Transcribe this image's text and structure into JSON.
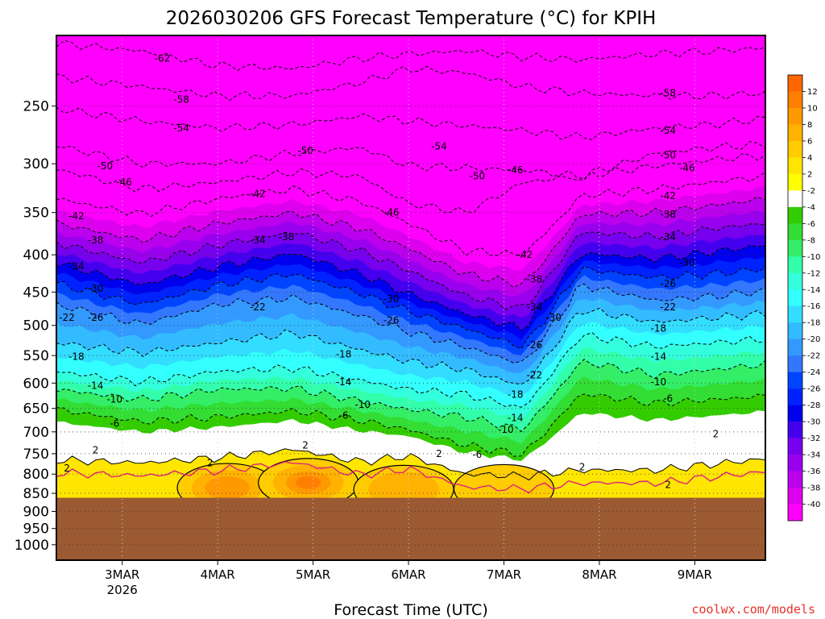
{
  "chart_data": {
    "type": "heatmap",
    "title": "2026030206 GFS Forecast Temperature (°C) for KPIH",
    "xlabel": "Forecast Time (UTC)",
    "ylabel": "",
    "credit": "coolwx.com/models",
    "x_ticks": [
      {
        "label": "3MAR",
        "sub": "2026",
        "day": 3
      },
      {
        "label": "4MAR",
        "sub": "",
        "day": 4
      },
      {
        "label": "5MAR",
        "sub": "",
        "day": 5
      },
      {
        "label": "6MAR",
        "sub": "",
        "day": 6
      },
      {
        "label": "7MAR",
        "sub": "",
        "day": 7
      },
      {
        "label": "8MAR",
        "sub": "",
        "day": 8
      },
      {
        "label": "9MAR",
        "sub": "",
        "day": 9
      }
    ],
    "xlim_days": [
      2.31,
      9.74
    ],
    "y_axis": {
      "quantity": "pressure (hPa)",
      "scale": "log",
      "reversed": true,
      "range": [
        200,
        1050
      ],
      "ticks": [
        250,
        300,
        350,
        400,
        450,
        500,
        550,
        600,
        650,
        700,
        750,
        800,
        850,
        900,
        950,
        1000
      ]
    },
    "gridlines": true,
    "ground_pressure_hPa": 862,
    "colorbar": {
      "placement": "right",
      "levels": [
        12,
        10,
        8,
        6,
        4,
        2,
        -2,
        -4,
        -6,
        -8,
        -10,
        -12,
        -14,
        -16,
        -18,
        -20,
        -22,
        -24,
        -26,
        -28,
        -30,
        -32,
        -34,
        -36,
        -38,
        -40
      ],
      "colors": [
        "#ff6600",
        "#ff8000",
        "#ff9900",
        "#ffb300",
        "#ffcc00",
        "#ffe600",
        "#ffff00",
        "#ffffff",
        "#33cc00",
        "#33dd33",
        "#33ee66",
        "#33ffaa",
        "#33ffdd",
        "#33ffff",
        "#33ddff",
        "#33bbff",
        "#3399ff",
        "#3377ff",
        "#0044ff",
        "#0022ff",
        "#0000ee",
        "#4400ee",
        "#7700ee",
        "#9900ee",
        "#bb00ee",
        "#dd00ee",
        "#ff00ff"
      ]
    },
    "isotherm_profiles": [
      {
        "t": -62,
        "x": [
          2.31,
          3.2,
          4.0,
          4.8,
          5.5,
          6.0,
          6.6,
          7.2,
          7.8,
          8.6,
          9.2,
          9.74
        ],
        "p": [
          205,
          210,
          220,
          222,
          215,
          212,
          210,
          214,
          216,
          212,
          210,
          208
        ]
      },
      {
        "t": -58,
        "x": [
          2.31,
          3.2,
          4.0,
          4.8,
          5.5,
          6.0,
          6.6,
          7.2,
          7.8,
          8.6,
          9.2,
          9.74
        ],
        "p": [
          228,
          235,
          242,
          242,
          232,
          222,
          225,
          235,
          240,
          242,
          242,
          240
        ]
      },
      {
        "t": -54,
        "x": [
          2.31,
          3.2,
          4.0,
          4.8,
          5.5,
          6.0,
          6.6,
          7.2,
          7.8,
          8.6,
          9.2,
          9.74
        ],
        "p": [
          252,
          262,
          268,
          265,
          258,
          262,
          266,
          270,
          276,
          268,
          265,
          260
        ]
      },
      {
        "t": -50,
        "x": [
          2.31,
          3.2,
          4.0,
          4.8,
          5.5,
          6.0,
          6.6,
          7.2,
          7.8,
          8.6,
          9.2,
          9.74
        ],
        "p": [
          283,
          300,
          300,
          290,
          285,
          302,
          304,
          306,
          312,
          290,
          285,
          282
        ]
      },
      {
        "t": -46,
        "x": [
          2.31,
          3.2,
          4.0,
          4.8,
          5.5,
          6.0,
          6.6,
          7.2,
          7.8,
          8.6,
          9.2,
          9.74
        ],
        "p": [
          305,
          325,
          318,
          308,
          312,
          340,
          350,
          318,
          312,
          302,
          296,
          292
        ]
      },
      {
        "t": -42,
        "x": [
          2.31,
          3.2,
          4.0,
          4.8,
          5.5,
          6.0,
          6.6,
          7.2,
          7.8,
          8.6,
          9.2,
          9.74
        ],
        "p": [
          335,
          352,
          335,
          325,
          338,
          362,
          395,
          400,
          332,
          325,
          318,
          312
        ]
      },
      {
        "t": -38,
        "x": [
          2.31,
          3.2,
          4.0,
          4.8,
          5.5,
          6.0,
          6.6,
          7.2,
          7.8,
          8.6,
          9.2,
          9.74
        ],
        "p": [
          362,
          382,
          362,
          350,
          368,
          392,
          425,
          440,
          352,
          350,
          342,
          335
        ]
      },
      {
        "t": -34,
        "x": [
          2.31,
          3.2,
          4.0,
          4.8,
          5.5,
          6.0,
          6.6,
          7.2,
          7.8,
          8.6,
          9.2,
          9.74
        ],
        "p": [
          385,
          410,
          388,
          372,
          395,
          420,
          455,
          475,
          372,
          378,
          368,
          362
        ]
      },
      {
        "t": -30,
        "x": [
          2.31,
          3.2,
          4.0,
          4.8,
          5.5,
          6.0,
          6.6,
          7.2,
          7.8,
          8.6,
          9.2,
          9.74
        ],
        "p": [
          410,
          440,
          415,
          398,
          425,
          452,
          482,
          505,
          398,
          405,
          396,
          388
        ]
      },
      {
        "t": -26,
        "x": [
          2.31,
          3.2,
          4.0,
          4.8,
          5.5,
          6.0,
          6.6,
          7.2,
          7.8,
          8.6,
          9.2,
          9.74
        ],
        "p": [
          438,
          468,
          440,
          425,
          452,
          478,
          505,
          535,
          418,
          430,
          425,
          418
        ]
      },
      {
        "t": -22,
        "x": [
          2.31,
          3.2,
          4.0,
          4.8,
          5.5,
          6.0,
          6.6,
          7.2,
          7.8,
          8.6,
          9.2,
          9.74
        ],
        "p": [
          468,
          498,
          468,
          458,
          485,
          510,
          535,
          565,
          440,
          462,
          456,
          448
        ]
      },
      {
        "t": -18,
        "x": [
          2.31,
          3.2,
          4.0,
          4.8,
          5.5,
          6.0,
          6.6,
          7.2,
          7.8,
          8.6,
          9.2,
          9.74
        ],
        "p": [
          528,
          545,
          528,
          512,
          540,
          560,
          575,
          605,
          475,
          495,
          488,
          482
        ]
      },
      {
        "t": -14,
        "x": [
          2.31,
          3.2,
          4.0,
          4.8,
          5.5,
          6.0,
          6.6,
          7.2,
          7.8,
          8.6,
          9.2,
          9.74
        ],
        "p": [
          578,
          598,
          578,
          572,
          595,
          612,
          622,
          650,
          515,
          535,
          528,
          522
        ]
      },
      {
        "t": -10,
        "x": [
          2.31,
          3.2,
          4.0,
          4.8,
          5.5,
          6.0,
          6.6,
          7.2,
          7.8,
          8.6,
          9.2,
          9.74
        ],
        "p": [
          612,
          632,
          612,
          610,
          635,
          652,
          668,
          695,
          560,
          585,
          575,
          565
        ]
      },
      {
        "t": -6,
        "x": [
          2.31,
          3.2,
          4.0,
          4.8,
          5.5,
          6.0,
          6.6,
          7.2,
          7.8,
          8.6,
          9.2,
          9.74
        ],
        "p": [
          652,
          678,
          668,
          655,
          675,
          695,
          730,
          752,
          620,
          640,
          632,
          625
        ]
      },
      {
        "t": 2,
        "x": [
          2.31,
          3.2,
          4.0,
          4.8,
          5.5,
          6.0,
          6.6,
          7.2,
          7.8,
          8.6,
          9.2,
          9.74
        ],
        "p": [
          765,
          772,
          760,
          740,
          770,
          755,
          800,
          805,
          790,
          790,
          775,
          762
        ]
      }
    ],
    "isotherm_labels": [
      {
        "text": "-62",
        "x": 3.42,
        "p": 215
      },
      {
        "text": "-58",
        "x": 3.62,
        "p": 245
      },
      {
        "text": "-58",
        "x": 8.72,
        "p": 240
      },
      {
        "text": "-54",
        "x": 3.62,
        "p": 268
      },
      {
        "text": "-54",
        "x": 6.32,
        "p": 284
      },
      {
        "text": "-54",
        "x": 8.72,
        "p": 270
      },
      {
        "text": "-50",
        "x": 2.82,
        "p": 302
      },
      {
        "text": "-50",
        "x": 4.92,
        "p": 288
      },
      {
        "text": "-50",
        "x": 6.72,
        "p": 312
      },
      {
        "text": "-50",
        "x": 8.72,
        "p": 292
      },
      {
        "text": "-46",
        "x": 3.02,
        "p": 318
      },
      {
        "text": "-46",
        "x": 5.82,
        "p": 350
      },
      {
        "text": "-46",
        "x": 7.12,
        "p": 306
      },
      {
        "text": "-46",
        "x": 8.92,
        "p": 304
      },
      {
        "text": "-42",
        "x": 2.52,
        "p": 354
      },
      {
        "text": "-42",
        "x": 4.42,
        "p": 330
      },
      {
        "text": "-42",
        "x": 7.22,
        "p": 400
      },
      {
        "text": "-42",
        "x": 8.72,
        "p": 332
      },
      {
        "text": "-38",
        "x": 2.72,
        "p": 382
      },
      {
        "text": "-38",
        "x": 4.72,
        "p": 378
      },
      {
        "text": "-38",
        "x": 7.32,
        "p": 432
      },
      {
        "text": "-38",
        "x": 8.72,
        "p": 352
      },
      {
        "text": "-34",
        "x": 2.52,
        "p": 415
      },
      {
        "text": "-34",
        "x": 4.42,
        "p": 382
      },
      {
        "text": "-34",
        "x": 7.32,
        "p": 472
      },
      {
        "text": "-34",
        "x": 8.72,
        "p": 378
      },
      {
        "text": "-30",
        "x": 2.72,
        "p": 445
      },
      {
        "text": "-30",
        "x": 5.82,
        "p": 460
      },
      {
        "text": "-30",
        "x": 7.52,
        "p": 488
      },
      {
        "text": "-30",
        "x": 8.92,
        "p": 410
      },
      {
        "text": "-26",
        "x": 2.72,
        "p": 488
      },
      {
        "text": "-26",
        "x": 5.82,
        "p": 492
      },
      {
        "text": "-26",
        "x": 7.32,
        "p": 532
      },
      {
        "text": "-26",
        "x": 8.72,
        "p": 438
      },
      {
        "text": "-22",
        "x": 2.42,
        "p": 488
      },
      {
        "text": "-22",
        "x": 4.42,
        "p": 472
      },
      {
        "text": "-22",
        "x": 7.32,
        "p": 585
      },
      {
        "text": "-22",
        "x": 8.72,
        "p": 472
      },
      {
        "text": "-18",
        "x": 2.52,
        "p": 552
      },
      {
        "text": "-18",
        "x": 5.32,
        "p": 548
      },
      {
        "text": "-18",
        "x": 7.12,
        "p": 622
      },
      {
        "text": "-18",
        "x": 8.62,
        "p": 505
      },
      {
        "text": "-14",
        "x": 2.72,
        "p": 605
      },
      {
        "text": "-14",
        "x": 5.32,
        "p": 598
      },
      {
        "text": "-14",
        "x": 7.12,
        "p": 670
      },
      {
        "text": "-14",
        "x": 8.62,
        "p": 552
      },
      {
        "text": "-10",
        "x": 2.92,
        "p": 632
      },
      {
        "text": "-10",
        "x": 5.52,
        "p": 642
      },
      {
        "text": "-10",
        "x": 7.02,
        "p": 695
      },
      {
        "text": "-10",
        "x": 8.62,
        "p": 598
      },
      {
        "text": "-6",
        "x": 2.92,
        "p": 682
      },
      {
        "text": "-6",
        "x": 5.32,
        "p": 665
      },
      {
        "text": "-6",
        "x": 6.72,
        "p": 752
      },
      {
        "text": "-6",
        "x": 8.72,
        "p": 630
      },
      {
        "text": "2",
        "x": 2.72,
        "p": 742
      },
      {
        "text": "2",
        "x": 4.92,
        "p": 730
      },
      {
        "text": "2",
        "x": 6.32,
        "p": 750
      },
      {
        "text": "2",
        "x": 2.42,
        "p": 785
      },
      {
        "text": "2",
        "x": 3.92,
        "p": 772
      },
      {
        "text": "2",
        "x": 7.82,
        "p": 782
      },
      {
        "text": "2",
        "x": 8.72,
        "p": 828
      },
      {
        "text": "2",
        "x": 9.22,
        "p": 705
      }
    ],
    "warm_cores": [
      {
        "x": 4.1,
        "p": 835,
        "max_c": 8
      },
      {
        "x": 4.95,
        "p": 822,
        "max_c": 10
      },
      {
        "x": 5.95,
        "p": 840,
        "max_c": 6
      },
      {
        "x": 7.0,
        "p": 838,
        "max_c": 4
      }
    ]
  }
}
